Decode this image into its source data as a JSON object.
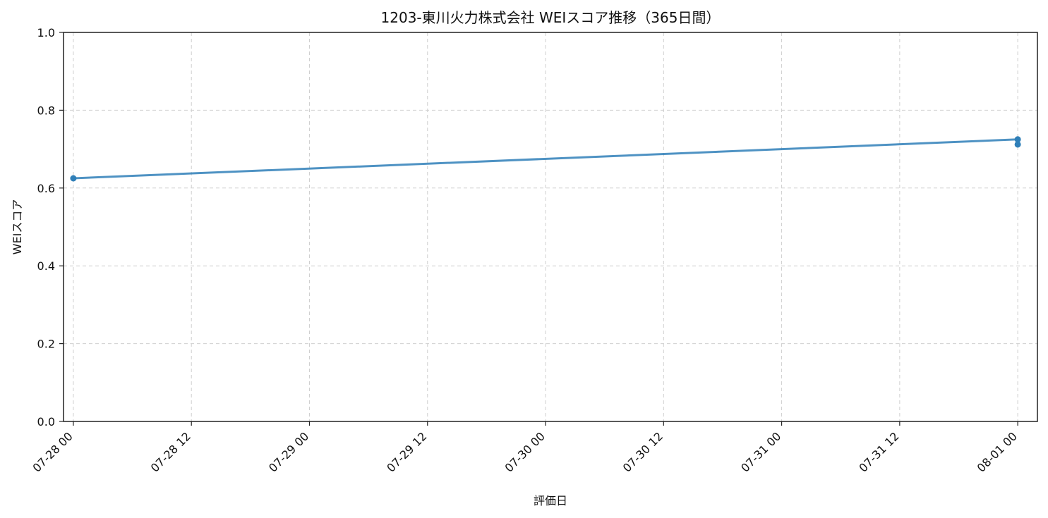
{
  "chart_data": {
    "type": "line",
    "title": "1203-東川火力株式会社 WEIスコア推移（365日間）",
    "xlabel": "評価日",
    "ylabel": "WEIスコア",
    "ylim": [
      0,
      1.0
    ],
    "yticks": [
      0.0,
      0.2,
      0.4,
      0.6,
      0.8,
      1.0
    ],
    "ytick_labels": [
      "0.0",
      "0.2",
      "0.4",
      "0.6",
      "0.8",
      "1.0"
    ],
    "xlim": [
      "07-27 23:00",
      "08-01 02:00"
    ],
    "xticks": [
      "07-28 00",
      "07-28 12",
      "07-29 00",
      "07-29 12",
      "07-30 00",
      "07-30 12",
      "07-31 00",
      "07-31 12",
      "08-01 00"
    ],
    "xtick_labels": [
      "07-28 00",
      "07-28 12",
      "07-29 00",
      "07-29 12",
      "07-30 00",
      "07-30 12",
      "07-31 00",
      "07-31 12",
      "08-01 00"
    ],
    "grid": true,
    "series": [
      {
        "points": [
          {
            "x": "07-28 00",
            "y": 0.625
          },
          {
            "x": "08-01 00",
            "y": 0.725
          },
          {
            "x": "08-01 00",
            "y": 0.712
          }
        ],
        "color": "#2f7fb8"
      }
    ]
  }
}
